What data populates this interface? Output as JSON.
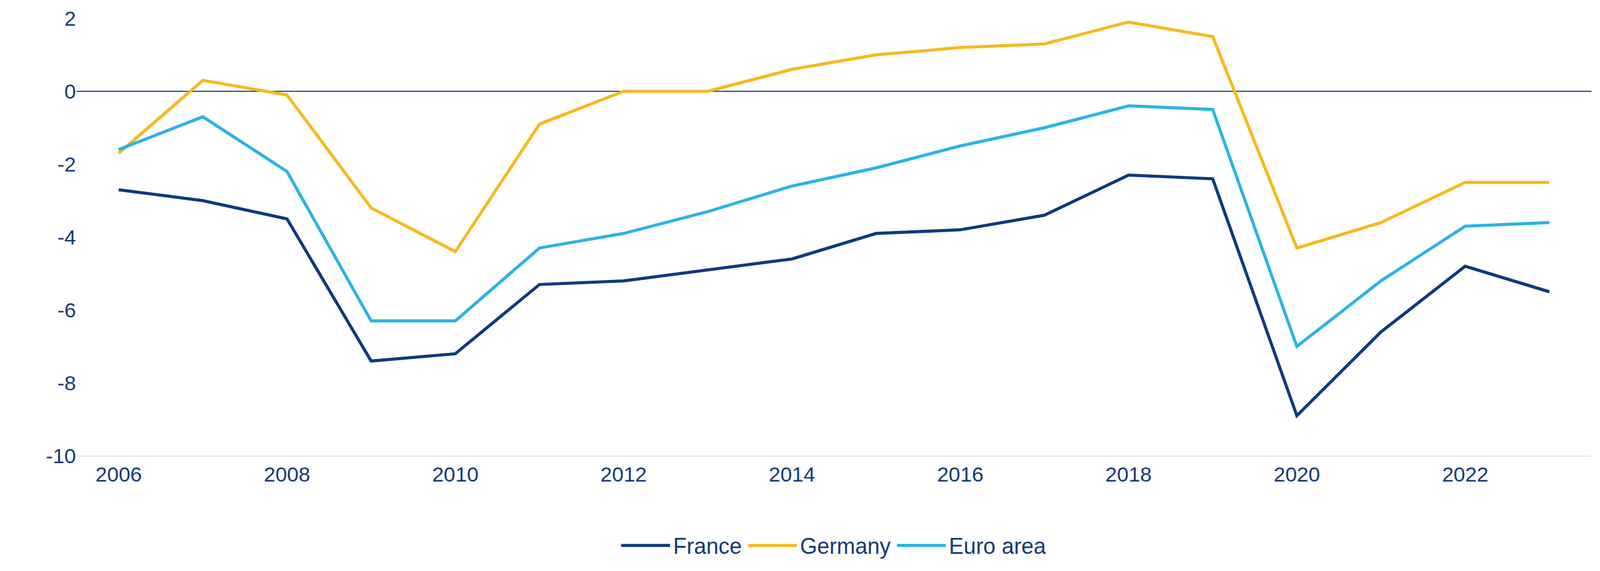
{
  "chart_data": {
    "type": "line",
    "x": [
      2006,
      2007,
      2008,
      2009,
      2010,
      2011,
      2012,
      2013,
      2014,
      2015,
      2016,
      2017,
      2018,
      2019,
      2020,
      2021,
      2022,
      2023
    ],
    "series": [
      {
        "name": "France",
        "color": "#0b3a7e",
        "values": [
          -2.7,
          -3.0,
          -3.5,
          -7.4,
          -7.2,
          -5.3,
          -5.2,
          -4.9,
          -4.6,
          -3.9,
          -3.8,
          -3.4,
          -2.3,
          -2.4,
          -8.9,
          -6.6,
          -4.8,
          -5.5
        ]
      },
      {
        "name": "Germany",
        "color": "#f6b91e",
        "values": [
          -1.7,
          0.3,
          -0.1,
          -3.2,
          -4.4,
          -0.9,
          0.0,
          0.0,
          0.6,
          1.0,
          1.2,
          1.3,
          1.9,
          1.5,
          -4.3,
          -3.6,
          -2.5,
          -2.5
        ]
      },
      {
        "name": "Euro area",
        "color": "#2bb3e3",
        "values": [
          -1.6,
          -0.7,
          -2.2,
          -6.3,
          -6.3,
          -4.3,
          -3.9,
          -3.3,
          -2.6,
          -2.1,
          -1.5,
          -1.0,
          -0.4,
          -0.5,
          -7.0,
          -5.2,
          -3.7,
          -3.6
        ]
      }
    ],
    "xlim": [
      2005.5,
      2023.5
    ],
    "xticks": [
      2006,
      2008,
      2010,
      2012,
      2014,
      2016,
      2018,
      2020,
      2022
    ],
    "ylim": [
      -10,
      2
    ],
    "yticks": [
      -10,
      -8,
      -6,
      -4,
      -2,
      0,
      2
    ],
    "grid": false,
    "legend": "bottom"
  }
}
